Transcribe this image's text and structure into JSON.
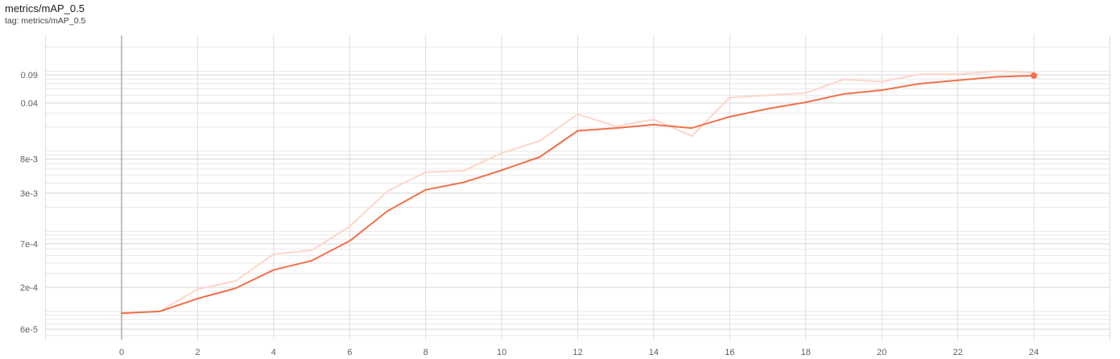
{
  "card": {
    "title": "metrics/mAP_0.5",
    "tag": "tag: metrics/mAP_0.5"
  },
  "chart_data": {
    "type": "line",
    "title": "metrics/mAP_0.5",
    "x_ticks": [
      0,
      2,
      4,
      6,
      8,
      10,
      12,
      14,
      16,
      18,
      20,
      22,
      24
    ],
    "y_scale": "log",
    "y_ticks": [
      6e-05,
      0.0002,
      0.0007,
      0.003,
      0.008,
      0.04,
      0.09
    ],
    "y_tick_labels": [
      "6e-5",
      "2e-4",
      "7e-4",
      "3e-3",
      "8e-3",
      "0.04",
      "0.09"
    ],
    "xlim": [
      -2,
      26
    ],
    "grid": true,
    "colors": {
      "smoothed": "#f0714a",
      "raw": "#fcd6c9",
      "axis": "#9e9e9e",
      "grid": "#dddddd"
    },
    "series": [
      {
        "role": "raw",
        "x": [
          0,
          1,
          2,
          3,
          4,
          5,
          6,
          7,
          8,
          9,
          10,
          11,
          12,
          13,
          14,
          15,
          16,
          17,
          18,
          19,
          20,
          21,
          22,
          23,
          24
        ],
        "y": [
          9.5e-05,
          0.0001,
          0.00019,
          0.00024,
          0.00052,
          0.00058,
          0.00115,
          0.0032,
          0.0055,
          0.0057,
          0.0095,
          0.0135,
          0.029,
          0.0205,
          0.025,
          0.0155,
          0.047,
          0.05,
          0.0535,
          0.079,
          0.074,
          0.092,
          0.092,
          0.1,
          0.096
        ]
      },
      {
        "role": "smoothed",
        "x": [
          0,
          1,
          2,
          3,
          4,
          5,
          6,
          7,
          8,
          9,
          10,
          11,
          12,
          13,
          14,
          15,
          16,
          17,
          18,
          19,
          20,
          21,
          22,
          23,
          24
        ],
        "y": [
          9.5e-05,
          0.0001,
          0.000145,
          0.000195,
          0.00033,
          0.00043,
          0.00076,
          0.0018,
          0.0033,
          0.0041,
          0.0058,
          0.0085,
          0.018,
          0.0195,
          0.0215,
          0.0195,
          0.027,
          0.034,
          0.041,
          0.052,
          0.058,
          0.07,
          0.077,
          0.085,
          0.088
        ]
      }
    ]
  }
}
